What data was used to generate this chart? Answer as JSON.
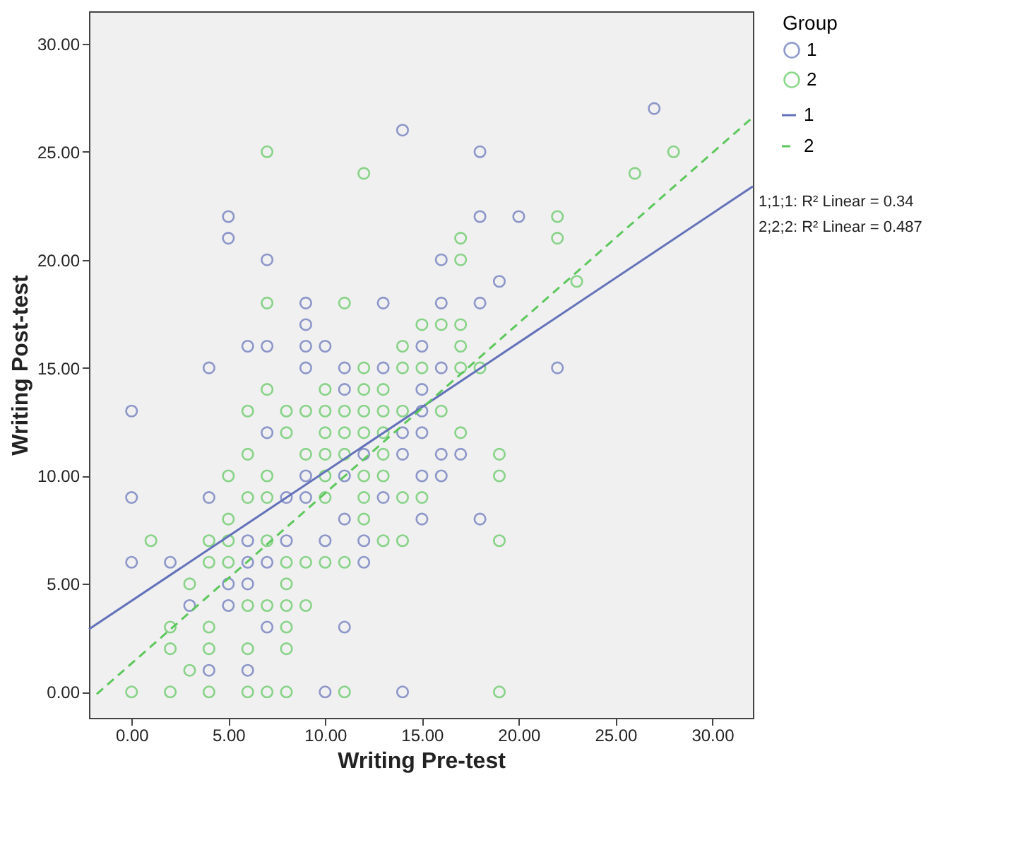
{
  "chart_data": {
    "type": "scatter",
    "xlabel": "Writing Pre-test",
    "ylabel": "Writing Post-test",
    "legend_title": "Group",
    "legend": "top right",
    "grid": false,
    "xlim": [
      -2.2,
      32.1
    ],
    "ylim": [
      -1.2,
      31.5
    ],
    "xticks": [
      {
        "value": 0,
        "label": "0.00"
      },
      {
        "value": 5,
        "label": "5.00"
      },
      {
        "value": 10,
        "label": "10.00"
      },
      {
        "value": 15,
        "label": "15.00"
      },
      {
        "value": 20,
        "label": "20.00"
      },
      {
        "value": 25,
        "label": "25.00"
      },
      {
        "value": 30,
        "label": "30.00"
      }
    ],
    "yticks": [
      {
        "value": 0,
        "label": "0.00"
      },
      {
        "value": 5,
        "label": "5.00"
      },
      {
        "value": 10,
        "label": "10.00"
      },
      {
        "value": 15,
        "label": "15.00"
      },
      {
        "value": 20,
        "label": "20.00"
      },
      {
        "value": 25,
        "label": "25.00"
      },
      {
        "value": 30,
        "label": "30.00"
      }
    ],
    "annotations": [
      "1;1;1: R² Linear = 0.34",
      "2;2;2: R² Linear = 0.487"
    ],
    "series": [
      {
        "name": "1",
        "color": "#6271b9",
        "x": [
          27,
          14,
          18,
          5,
          18,
          20,
          5,
          7,
          16,
          19,
          9,
          13,
          16,
          18,
          9,
          6,
          7,
          9,
          10,
          15,
          4,
          9,
          11,
          13,
          16,
          22,
          11,
          15,
          0,
          15,
          7,
          14,
          15,
          12,
          14,
          16,
          17,
          9,
          11,
          15,
          16,
          0,
          4,
          8,
          9,
          13,
          11,
          15,
          18,
          6,
          8,
          10,
          12,
          0,
          2,
          6,
          7,
          12,
          5,
          6,
          3,
          5,
          7,
          11,
          4,
          6,
          10,
          14
        ],
        "values": [
          27,
          26,
          25,
          22,
          22,
          22,
          21,
          20,
          20,
          19,
          18,
          18,
          18,
          18,
          17,
          16,
          16,
          16,
          16,
          16,
          15,
          15,
          15,
          15,
          15,
          15,
          14,
          14,
          13,
          13,
          12,
          12,
          12,
          11,
          11,
          11,
          11,
          10,
          10,
          10,
          10,
          9,
          9,
          9,
          9,
          9,
          8,
          8,
          8,
          7,
          7,
          7,
          7,
          6,
          6,
          6,
          6,
          6,
          5,
          5,
          4,
          4,
          3,
          3,
          1,
          1,
          0,
          0
        ]
      },
      {
        "name": "2",
        "color": "#5cc85c",
        "x": [
          7,
          28,
          12,
          26,
          22,
          17,
          22,
          17,
          23,
          7,
          11,
          15,
          16,
          17,
          14,
          17,
          12,
          14,
          15,
          17,
          18,
          7,
          10,
          12,
          13,
          6,
          8,
          9,
          10,
          11,
          12,
          13,
          14,
          16,
          8,
          10,
          11,
          12,
          13,
          17,
          6,
          9,
          10,
          11,
          13,
          19,
          5,
          7,
          10,
          12,
          13,
          19,
          6,
          7,
          10,
          12,
          14,
          15,
          5,
          12,
          1,
          4,
          5,
          7,
          13,
          14,
          19,
          4,
          5,
          8,
          9,
          10,
          11,
          3,
          8,
          6,
          7,
          8,
          9,
          2,
          4,
          8,
          2,
          4,
          6,
          8,
          3,
          0,
          2,
          4,
          6,
          7,
          8,
          11,
          19
        ],
        "values": [
          25,
          25,
          24,
          24,
          22,
          21,
          21,
          20,
          19,
          18,
          18,
          17,
          17,
          17,
          16,
          16,
          15,
          15,
          15,
          15,
          15,
          14,
          14,
          14,
          14,
          13,
          13,
          13,
          13,
          13,
          13,
          13,
          13,
          13,
          12,
          12,
          12,
          12,
          12,
          12,
          11,
          11,
          11,
          11,
          11,
          11,
          10,
          10,
          10,
          10,
          10,
          10,
          9,
          9,
          9,
          9,
          9,
          9,
          8,
          8,
          7,
          7,
          7,
          7,
          7,
          7,
          7,
          6,
          6,
          6,
          6,
          6,
          6,
          5,
          5,
          4,
          4,
          4,
          4,
          3,
          3,
          3,
          2,
          2,
          2,
          2,
          1,
          0,
          0,
          0,
          0,
          0,
          0,
          0,
          0
        ]
      },
      {
        "name": "1",
        "type": "line",
        "line_style": "solid",
        "color": "#6271b9",
        "x": [
          -2.2,
          32.1
        ],
        "values": [
          2.9,
          23.4
        ]
      },
      {
        "name": "2",
        "type": "line",
        "line_style": "dashed",
        "color": "#5cc85c",
        "x": [
          -1.8,
          32.1
        ],
        "values": [
          -0.1,
          26.6
        ]
      }
    ]
  }
}
